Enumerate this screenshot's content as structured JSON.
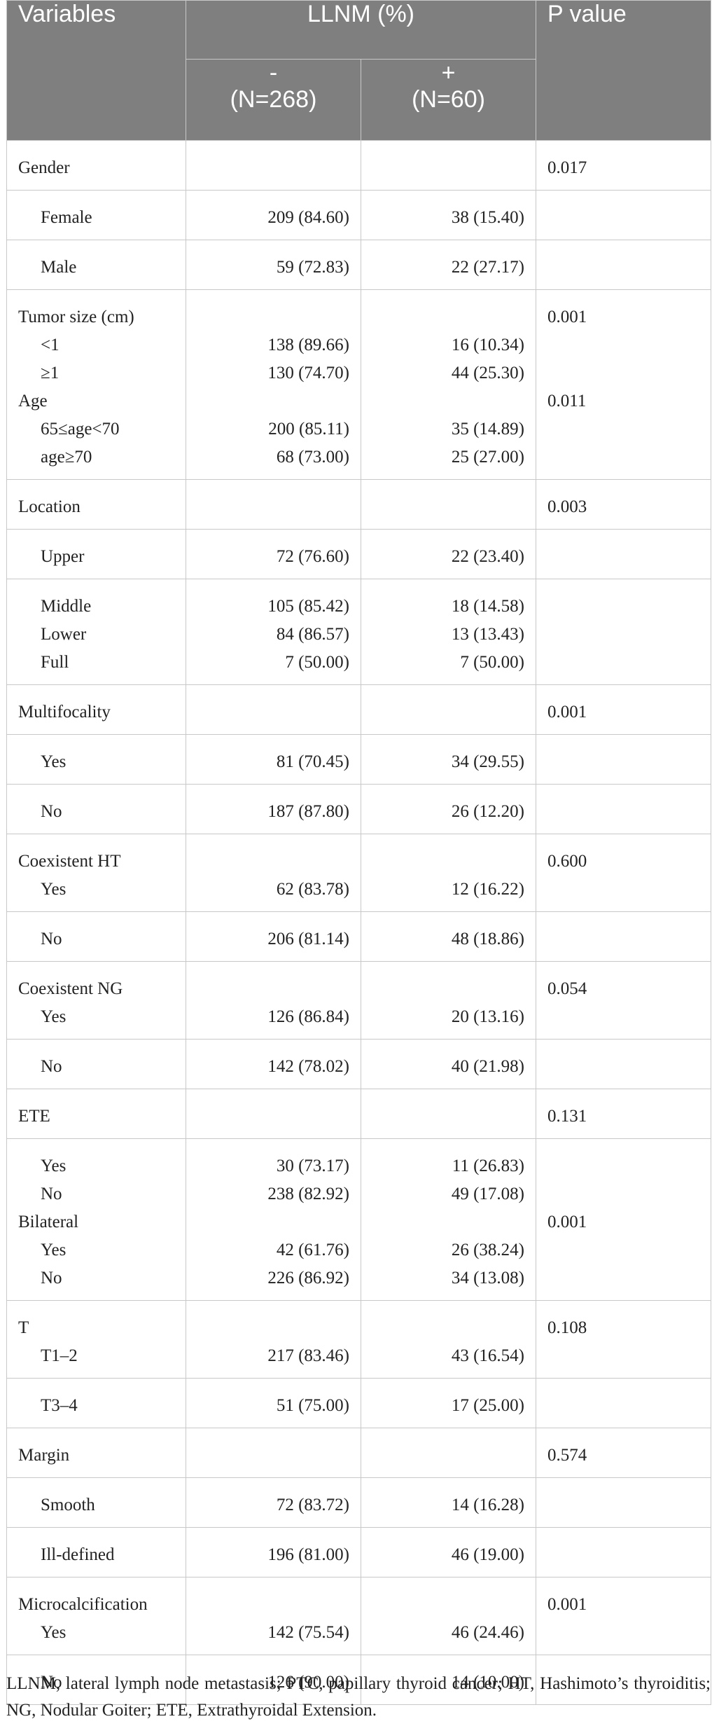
{
  "header": {
    "variables": "Variables",
    "llnm": "LLNM (%)",
    "p_value": "P value",
    "neg_sign": "-",
    "neg_n": "(N=268)",
    "pos_sign": "+",
    "pos_n": "(N=60)"
  },
  "groups": [
    [
      {
        "label": "Gender",
        "neg": "",
        "pos": "",
        "p": "0.017",
        "indent": false
      }
    ],
    [
      {
        "label": "Female",
        "neg": "209 (84.60)",
        "pos": "38 (15.40)",
        "p": "",
        "indent": true
      }
    ],
    [
      {
        "label": "Male",
        "neg": "59 (72.83)",
        "pos": "22 (27.17)",
        "p": "",
        "indent": true
      }
    ],
    [
      {
        "label": "Tumor size (cm)",
        "neg": "",
        "pos": "",
        "p": "0.001",
        "indent": false
      },
      {
        "label": "<1",
        "neg": "138 (89.66)",
        "pos": "16 (10.34)",
        "p": "",
        "indent": true
      },
      {
        "label": "≥1",
        "neg": "130 (74.70)",
        "pos": "44 (25.30)",
        "p": "",
        "indent": true
      },
      {
        "label": "Age",
        "neg": "",
        "pos": "",
        "p": "0.011",
        "indent": false
      },
      {
        "label": "65≤age<70",
        "neg": "200 (85.11)",
        "pos": "35 (14.89)",
        "p": "",
        "indent": true
      },
      {
        "label": "age≥70",
        "neg": "68 (73.00)",
        "pos": "25 (27.00)",
        "p": "",
        "indent": true
      }
    ],
    [
      {
        "label": "Location",
        "neg": "",
        "pos": "",
        "p": "0.003",
        "indent": false
      }
    ],
    [
      {
        "label": "Upper",
        "neg": "72 (76.60)",
        "pos": "22 (23.40)",
        "p": "",
        "indent": true
      }
    ],
    [
      {
        "label": "Middle",
        "neg": "105 (85.42)",
        "pos": "18 (14.58)",
        "p": "",
        "indent": true
      },
      {
        "label": "Lower",
        "neg": "84 (86.57)",
        "pos": "13 (13.43)",
        "p": "",
        "indent": true
      },
      {
        "label": "Full",
        "neg": "7 (50.00)",
        "pos": "7 (50.00)",
        "p": "",
        "indent": true
      }
    ],
    [
      {
        "label": "Multifocality",
        "neg": "",
        "pos": "",
        "p": "0.001",
        "indent": false
      }
    ],
    [
      {
        "label": "Yes",
        "neg": "81 (70.45)",
        "pos": "34 (29.55)",
        "p": "",
        "indent": true
      }
    ],
    [
      {
        "label": "No",
        "neg": "187 (87.80)",
        "pos": "26 (12.20)",
        "p": "",
        "indent": true
      }
    ],
    [
      {
        "label": "Coexistent HT",
        "neg": "",
        "pos": "",
        "p": "0.600",
        "indent": false
      },
      {
        "label": "Yes",
        "neg": "62 (83.78)",
        "pos": "12 (16.22)",
        "p": "",
        "indent": true
      }
    ],
    [
      {
        "label": "No",
        "neg": "206 (81.14)",
        "pos": "48 (18.86)",
        "p": "",
        "indent": true
      }
    ],
    [
      {
        "label": "Coexistent NG",
        "neg": "",
        "pos": "",
        "p": "0.054",
        "indent": false
      },
      {
        "label": "Yes",
        "neg": "126 (86.84)",
        "pos": "20 (13.16)",
        "p": "",
        "indent": true
      }
    ],
    [
      {
        "label": "No",
        "neg": "142 (78.02)",
        "pos": "40 (21.98)",
        "p": "",
        "indent": true
      }
    ],
    [
      {
        "label": "ETE",
        "neg": "",
        "pos": "",
        "p": "0.131",
        "indent": false
      }
    ],
    [
      {
        "label": "Yes",
        "neg": "30 (73.17)",
        "pos": "11 (26.83)",
        "p": "",
        "indent": true
      },
      {
        "label": "No",
        "neg": "238 (82.92)",
        "pos": "49 (17.08)",
        "p": "",
        "indent": true
      },
      {
        "label": "Bilateral",
        "neg": "",
        "pos": "",
        "p": "0.001",
        "indent": false
      },
      {
        "label": "Yes",
        "neg": "42 (61.76)",
        "pos": "26 (38.24)",
        "p": "",
        "indent": true
      },
      {
        "label": "No",
        "neg": "226 (86.92)",
        "pos": "34 (13.08)",
        "p": "",
        "indent": true
      }
    ],
    [
      {
        "label": "T",
        "neg": "",
        "pos": "",
        "p": "0.108",
        "indent": false
      },
      {
        "label": "T1–2",
        "neg": "217 (83.46)",
        "pos": "43 (16.54)",
        "p": "",
        "indent": true
      }
    ],
    [
      {
        "label": "T3–4",
        "neg": "51 (75.00)",
        "pos": "17 (25.00)",
        "p": "",
        "indent": true
      }
    ],
    [
      {
        "label": "Margin",
        "neg": "",
        "pos": "",
        "p": "0.574",
        "indent": false
      }
    ],
    [
      {
        "label": "Smooth",
        "neg": "72 (83.72)",
        "pos": "14 (16.28)",
        "p": "",
        "indent": true
      }
    ],
    [
      {
        "label": "Ill-defined",
        "neg": "196 (81.00)",
        "pos": "46 (19.00)",
        "p": "",
        "indent": true
      }
    ],
    [
      {
        "label": "Microcalcification",
        "neg": "",
        "pos": "",
        "p": "0.001",
        "indent": false
      },
      {
        "label": "Yes",
        "neg": "142 (75.54)",
        "pos": "46 (24.46)",
        "p": "",
        "indent": true
      }
    ],
    [
      {
        "label": "No",
        "neg": "126 (90.00)",
        "pos": "14 (10.00)",
        "p": "",
        "indent": true
      }
    ]
  ],
  "footnote": "LLNM, lateral lymph node metastasis; PTC, papillary thyroid cancer; HT, Hashimoto’s thyroiditis; NG, Nodular Goiter; ETE, Extrathyroidal Extension."
}
